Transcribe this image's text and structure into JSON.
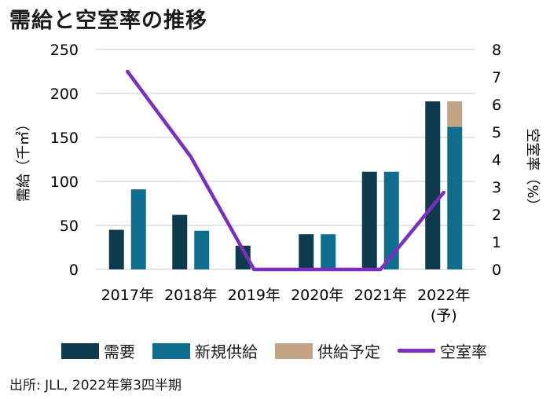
{
  "title": "需給と空室率の推移",
  "source": "出所: JLL, 2022年第3四半期",
  "colors": {
    "demand": "#0d3a4c",
    "new_supply": "#0f6e8e",
    "planned_supply": "#c2a384",
    "vacancy": "#7b2fbe",
    "grid": "#cfd5da"
  },
  "chart_data": {
    "type": "bar",
    "categories": [
      "2017年",
      "2018年",
      "2019年",
      "2020年",
      "2021年",
      "2022年\n(予)"
    ],
    "series": [
      {
        "name": "需要",
        "type": "bar",
        "axis": "left",
        "values": [
          45,
          62,
          27,
          40,
          111,
          191
        ]
      },
      {
        "name": "新規供給",
        "type": "bar",
        "axis": "left",
        "stack": "supply",
        "values": [
          91,
          44,
          0,
          40,
          111,
          162
        ]
      },
      {
        "name": "供給予定",
        "type": "bar",
        "axis": "left",
        "stack": "supply",
        "values": [
          0,
          0,
          0,
          0,
          0,
          29
        ]
      },
      {
        "name": "空室率",
        "type": "line",
        "axis": "right",
        "values": [
          7.2,
          4.1,
          0,
          0,
          0,
          2.8
        ]
      }
    ],
    "ylabel_left": "需給（千㎡）",
    "ylabel_right": "空室率（%）",
    "ylim_left": [
      0,
      250
    ],
    "ylim_right": [
      0,
      8
    ],
    "yticks_left": [
      "0",
      "50",
      "100",
      "150",
      "200",
      "250"
    ],
    "yticks_right": [
      "0",
      "1",
      "2",
      "3",
      "4",
      "5",
      "6",
      "7",
      "8"
    ],
    "grid": true,
    "legend_position": "bottom"
  },
  "legend": [
    {
      "label": "需要",
      "kind": "box",
      "color_key": "demand"
    },
    {
      "label": "新規供給",
      "kind": "box",
      "color_key": "new_supply"
    },
    {
      "label": "供給予定",
      "kind": "box",
      "color_key": "planned_supply"
    },
    {
      "label": "空室率",
      "kind": "line",
      "color_key": "vacancy"
    }
  ]
}
